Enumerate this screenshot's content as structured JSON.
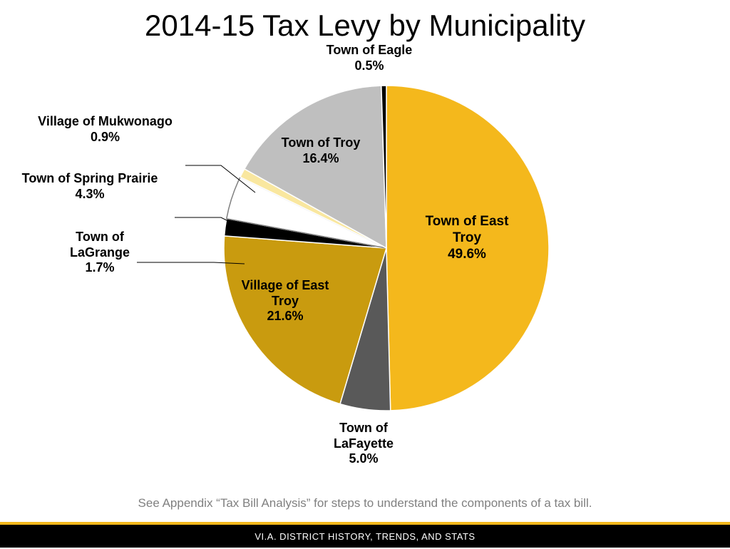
{
  "title": "2014-15 Tax Levy by Municipality",
  "footnote": "See Appendix “Tax Bill Analysis” for steps to understand the components of a tax bill.",
  "footer": "VI.A. DISTRICT HISTORY, TRENDS, AND STATS",
  "chart": {
    "type": "pie",
    "background_color": "#ffffff",
    "stroke_color": "#ffffff",
    "stroke_width": 1.5,
    "label_fontsize": 18,
    "label_fontsize_small": 17,
    "label_fontweight": "bold",
    "slices": [
      {
        "name": "Town of East Troy",
        "pct": 49.6,
        "color": "#f4b81c",
        "start": 0.0,
        "end": 178.56
      },
      {
        "name": "Town of LaFayette",
        "pct": 5.0,
        "color": "#595959",
        "start": 178.56,
        "end": 196.56
      },
      {
        "name": "Village of East Troy",
        "pct": 21.6,
        "color": "#c99b0f",
        "start": 196.56,
        "end": 274.32
      },
      {
        "name": "Town of LaGrange",
        "pct": 1.7,
        "color": "#000000",
        "start": 274.32,
        "end": 280.44
      },
      {
        "name": "Town of Spring Prairie",
        "pct": 4.3,
        "color": "#ffffff",
        "start": 280.44,
        "end": 295.92
      },
      {
        "name": "Village of Mukwonago",
        "pct": 0.9,
        "color": "#f9e79f",
        "start": 295.92,
        "end": 299.16
      },
      {
        "name": "Town of Troy",
        "pct": 16.4,
        "color": "#bfbfbf",
        "start": 299.16,
        "end": 358.2
      },
      {
        "name": "Town of Eagle",
        "pct": 0.5,
        "color": "#000000",
        "start": 358.2,
        "end": 360.0
      }
    ],
    "labels": {
      "east_troy": {
        "line1": "Town of East",
        "line2": "Troy",
        "line3": "49.6%"
      },
      "lafayette": {
        "line1": "Town of",
        "line2": "LaFayette",
        "line3": "5.0%"
      },
      "village_et": {
        "line1": "Village of East",
        "line2": "Troy",
        "line3": "21.6%"
      },
      "lagrange": {
        "line1": "Town of",
        "line2": "LaGrange",
        "line3": "1.7%"
      },
      "spring_prairie": {
        "line1": "Town of Spring Prairie",
        "line2": "4.3%"
      },
      "mukwonago": {
        "line1": "Village of Mukwonago",
        "line2": "0.9%"
      },
      "troy": {
        "line1": "Town of Troy",
        "line2": "16.4%"
      },
      "eagle": {
        "line1": "Town of Eagle",
        "line2": "0.5%"
      }
    }
  }
}
